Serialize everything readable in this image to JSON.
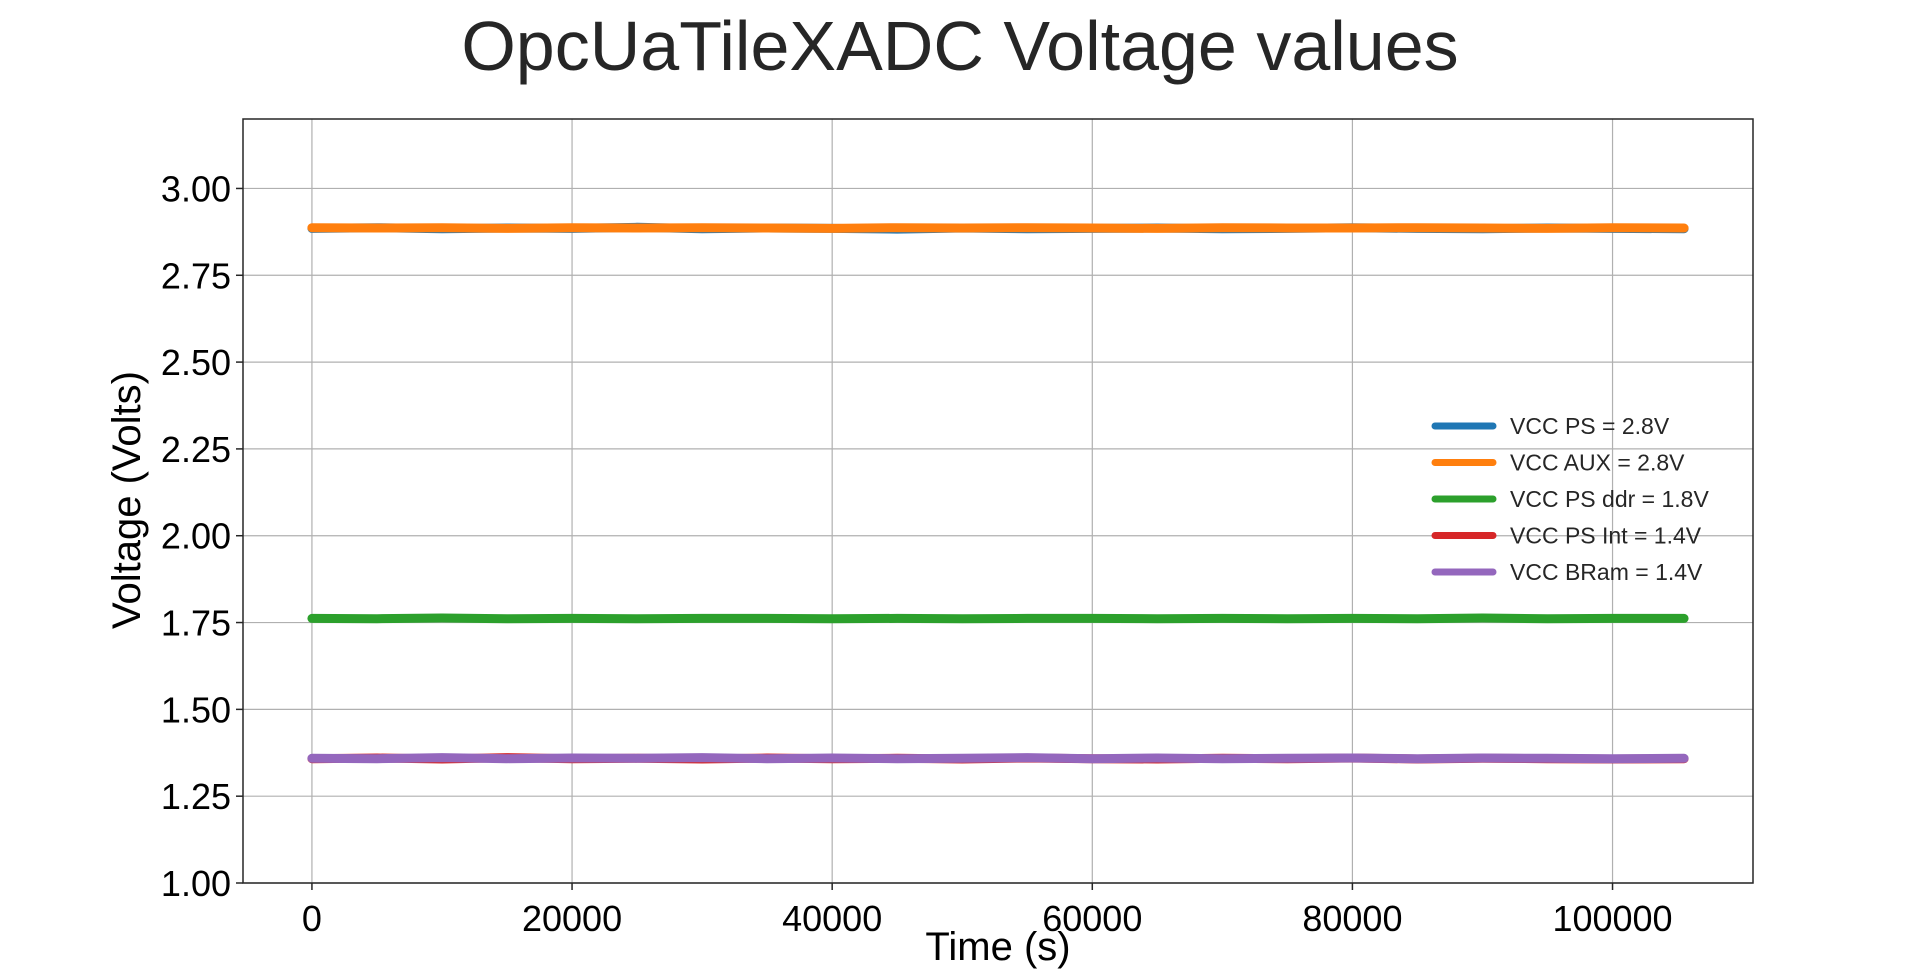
{
  "chart_data": {
    "type": "line",
    "title": "OpcUaTileXADC Voltage values",
    "xlabel": "Time (s)",
    "ylabel": "Voltage (Volts)",
    "xlim": [
      -5300,
      110800
    ],
    "ylim": [
      1.0,
      3.2
    ],
    "xticks": [
      0,
      20000,
      40000,
      60000,
      80000,
      100000
    ],
    "xtick_labels": [
      "0",
      "20000",
      "40000",
      "60000",
      "80000",
      "100000"
    ],
    "yticks": [
      1.0,
      1.25,
      1.5,
      1.75,
      2.0,
      2.25,
      2.5,
      2.75,
      3.0
    ],
    "ytick_labels": [
      "1.00",
      "1.25",
      "1.50",
      "1.75",
      "2.00",
      "2.25",
      "2.50",
      "2.75",
      "3.00"
    ],
    "grid": true,
    "legend_position": "center-right",
    "series": [
      {
        "name": "VCC PS = 2.8V",
        "color": "#1f77b4",
        "x": [
          0,
          5000,
          10000,
          15000,
          20000,
          25000,
          30000,
          35000,
          40000,
          45000,
          50000,
          55000,
          60000,
          65000,
          70000,
          75000,
          80000,
          85000,
          90000,
          95000,
          100000,
          105500
        ],
        "values": [
          2.885,
          2.887,
          2.884,
          2.886,
          2.885,
          2.888,
          2.884,
          2.886,
          2.885,
          2.883,
          2.886,
          2.884,
          2.885,
          2.886,
          2.884,
          2.885,
          2.887,
          2.885,
          2.884,
          2.886,
          2.885,
          2.884
        ]
      },
      {
        "name": "VCC AUX = 2.8V",
        "color": "#ff7f0e",
        "x": [
          0,
          5000,
          10000,
          15000,
          20000,
          25000,
          30000,
          35000,
          40000,
          45000,
          50000,
          55000,
          60000,
          65000,
          70000,
          75000,
          80000,
          85000,
          90000,
          95000,
          100000,
          105500
        ],
        "values": [
          2.887,
          2.886,
          2.887,
          2.885,
          2.887,
          2.886,
          2.887,
          2.886,
          2.885,
          2.887,
          2.886,
          2.887,
          2.886,
          2.885,
          2.887,
          2.886,
          2.886,
          2.887,
          2.886,
          2.885,
          2.887,
          2.886
        ]
      },
      {
        "name": "VCC PS ddr = 1.8V",
        "color": "#2ca02c",
        "x": [
          0,
          5000,
          10000,
          15000,
          20000,
          25000,
          30000,
          35000,
          40000,
          45000,
          50000,
          55000,
          60000,
          65000,
          70000,
          75000,
          80000,
          85000,
          90000,
          95000,
          100000,
          105500
        ],
        "values": [
          1.762,
          1.761,
          1.763,
          1.761,
          1.762,
          1.761,
          1.762,
          1.762,
          1.761,
          1.762,
          1.761,
          1.762,
          1.762,
          1.761,
          1.762,
          1.761,
          1.762,
          1.761,
          1.763,
          1.761,
          1.762,
          1.762
        ]
      },
      {
        "name": "VCC PS Int = 1.4V",
        "color": "#d62728",
        "x": [
          0,
          5000,
          10000,
          15000,
          20000,
          25000,
          30000,
          35000,
          40000,
          45000,
          50000,
          55000,
          60000,
          65000,
          70000,
          75000,
          80000,
          85000,
          90000,
          95000,
          100000,
          105500
        ],
        "values": [
          1.358,
          1.36,
          1.357,
          1.361,
          1.358,
          1.359,
          1.357,
          1.36,
          1.358,
          1.359,
          1.357,
          1.36,
          1.358,
          1.357,
          1.359,
          1.358,
          1.36,
          1.357,
          1.359,
          1.358,
          1.357,
          1.358
        ]
      },
      {
        "name": "VCC BRam = 1.4V",
        "color": "#9467bd",
        "x": [
          0,
          5000,
          10000,
          15000,
          20000,
          25000,
          30000,
          35000,
          40000,
          45000,
          50000,
          55000,
          60000,
          65000,
          70000,
          75000,
          80000,
          85000,
          90000,
          95000,
          100000,
          105500
        ],
        "values": [
          1.359,
          1.358,
          1.361,
          1.358,
          1.36,
          1.359,
          1.361,
          1.358,
          1.36,
          1.358,
          1.359,
          1.361,
          1.358,
          1.36,
          1.358,
          1.359,
          1.36,
          1.358,
          1.36,
          1.359,
          1.358,
          1.359
        ]
      }
    ]
  }
}
